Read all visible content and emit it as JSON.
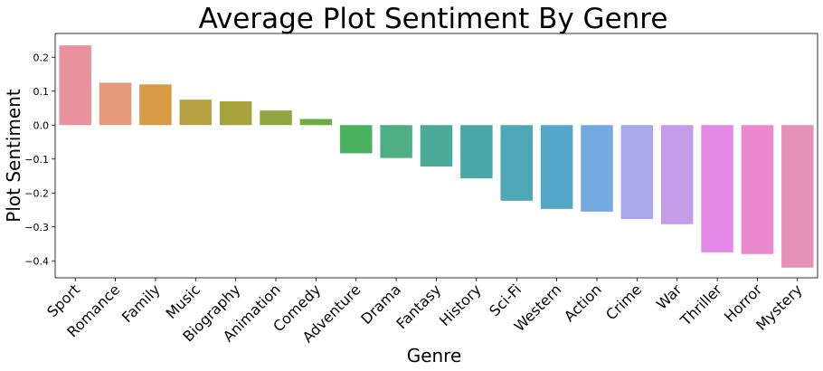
{
  "chart_data": {
    "type": "bar",
    "title": "Average Plot Sentiment By Genre",
    "xlabel": "Genre",
    "ylabel": "Plot Sentiment",
    "ylim": [
      -0.45,
      0.27
    ],
    "yticks": [
      0.2,
      0.1,
      0.0,
      -0.1,
      -0.2,
      -0.3,
      -0.4
    ],
    "ytick_labels": [
      "0.2",
      "0.1",
      "0.0",
      "−0.1",
      "−0.2",
      "−0.3",
      "−0.4"
    ],
    "grid": false,
    "legend": "none",
    "categories": [
      "Sport",
      "Romance",
      "Family",
      "Music",
      "Biography",
      "Animation",
      "Comedy",
      "Adventure",
      "Drama",
      "Fantasy",
      "History",
      "Sci-Fi",
      "Western",
      "Action",
      "Crime",
      "War",
      "Thriller",
      "Horror",
      "Mystery"
    ],
    "values": [
      0.235,
      0.125,
      0.12,
      0.075,
      0.07,
      0.043,
      0.018,
      -0.083,
      -0.097,
      -0.122,
      -0.157,
      -0.223,
      -0.247,
      -0.255,
      -0.277,
      -0.292,
      -0.375,
      -0.38,
      -0.42
    ],
    "colors": [
      "#e8929f",
      "#e89b7c",
      "#d89a46",
      "#b8a044",
      "#a6a33d",
      "#8ea541",
      "#6fab48",
      "#49b25f",
      "#4eaf84",
      "#4cab98",
      "#4aa9a6",
      "#4da7b6",
      "#55a6c8",
      "#74a9e0",
      "#a8a8ec",
      "#c59ce8",
      "#e28ae8",
      "#eb89cf",
      "#e691b8"
    ]
  }
}
